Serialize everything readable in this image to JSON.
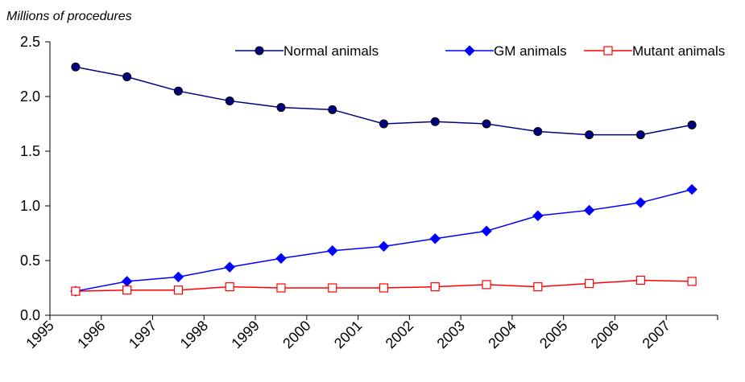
{
  "chart_data": {
    "type": "line",
    "title": "",
    "xlabel": "",
    "ylabel": "Millions of procedures",
    "x": [
      "1995",
      "1996",
      "1997",
      "1998",
      "1999",
      "2000",
      "2001",
      "2002",
      "2003",
      "2004",
      "2005",
      "2006",
      "2007"
    ],
    "y_ticks": [
      "0.0",
      "0.5",
      "1.0",
      "1.5",
      "2.0",
      "2.5"
    ],
    "ylim": [
      0,
      2.5
    ],
    "grid": false,
    "legend_position": "top-right",
    "series": [
      {
        "name": "Normal animals",
        "color": "#000080",
        "marker": "circle",
        "marker_fill": "#000080",
        "values": [
          2.27,
          2.18,
          2.05,
          1.96,
          1.9,
          1.88,
          1.75,
          1.77,
          1.75,
          1.68,
          1.65,
          1.65,
          1.74
        ]
      },
      {
        "name": "GM animals",
        "color": "#0000FF",
        "marker": "diamond",
        "marker_fill": "#0000FF",
        "values": [
          0.22,
          0.31,
          0.35,
          0.44,
          0.52,
          0.59,
          0.63,
          0.7,
          0.77,
          0.91,
          0.96,
          1.03,
          1.15
        ]
      },
      {
        "name": "Mutant animals",
        "color": "#FF0000",
        "marker": "square",
        "marker_fill": "#FFFFFF",
        "values": [
          0.22,
          0.23,
          0.23,
          0.26,
          0.25,
          0.25,
          0.25,
          0.26,
          0.28,
          0.26,
          0.29,
          0.32,
          0.31
        ]
      }
    ]
  }
}
